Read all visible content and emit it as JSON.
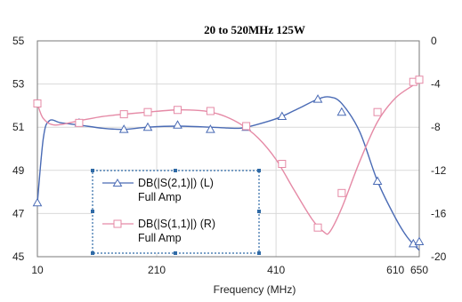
{
  "chart_data": {
    "type": "line",
    "title": "20 to 520MHz 125W",
    "xlabel": "Frequency (MHz)",
    "x_ticks": [
      10,
      210,
      410,
      610,
      650
    ],
    "xlim": [
      10,
      650
    ],
    "y_left": {
      "ticks": [
        45,
        47,
        49,
        51,
        53,
        55
      ],
      "lim": [
        45,
        55
      ]
    },
    "y_right": {
      "ticks": [
        -20,
        -16,
        -12,
        -8,
        -4,
        0
      ],
      "lim": [
        -20,
        0
      ]
    },
    "grid": true,
    "legend_position": "lower-left",
    "series": [
      {
        "name": "DB(|S(2,1)|) (L)",
        "name_line2": "Full Amp",
        "axis": "left",
        "color": "#4a6bb5",
        "marker": "triangle",
        "markers_x": [
          10,
          80,
          155,
          195,
          245,
          300,
          360,
          420,
          480,
          520,
          580,
          640,
          650
        ],
        "markers_y": [
          47.5,
          51.2,
          50.9,
          51.0,
          51.1,
          50.9,
          51.0,
          51.5,
          52.3,
          51.7,
          48.5,
          45.6,
          45.7
        ],
        "curve_x": [
          10,
          20,
          30,
          50,
          80,
          120,
          155,
          195,
          245,
          300,
          340,
          360,
          400,
          420,
          450,
          480,
          500,
          520,
          550,
          580,
          610,
          630,
          650
        ],
        "curve_y": [
          47.5,
          50.5,
          51.3,
          51.2,
          51.1,
          50.95,
          50.9,
          51.0,
          51.05,
          51.0,
          50.95,
          51.0,
          51.3,
          51.5,
          51.9,
          52.3,
          52.4,
          52.1,
          50.8,
          48.5,
          46.8,
          45.9,
          45.3
        ]
      },
      {
        "name": "DB(|S(1,1)|) (R)",
        "name_line2": "Full Amp",
        "axis": "right",
        "color": "#e58aa6",
        "marker": "square",
        "markers_x": [
          10,
          80,
          155,
          195,
          245,
          300,
          360,
          420,
          480,
          520,
          580,
          640,
          650
        ],
        "markers_y": [
          -5.8,
          -7.6,
          -6.8,
          -6.6,
          -6.4,
          -6.5,
          -7.9,
          -11.4,
          -17.3,
          -14.1,
          -6.6,
          -3.8,
          -3.6
        ],
        "curve_x": [
          10,
          20,
          40,
          80,
          120,
          155,
          195,
          245,
          290,
          320,
          350,
          380,
          410,
          440,
          470,
          490,
          500,
          520,
          550,
          580,
          610,
          640,
          650
        ],
        "curve_y": [
          -5.8,
          -7.2,
          -7.8,
          -7.4,
          -7.0,
          -6.8,
          -6.6,
          -6.4,
          -6.5,
          -6.9,
          -7.7,
          -9.0,
          -11.0,
          -13.8,
          -16.5,
          -17.7,
          -17.7,
          -15.5,
          -11.2,
          -7.5,
          -5.3,
          -4.1,
          -3.6
        ]
      }
    ]
  }
}
